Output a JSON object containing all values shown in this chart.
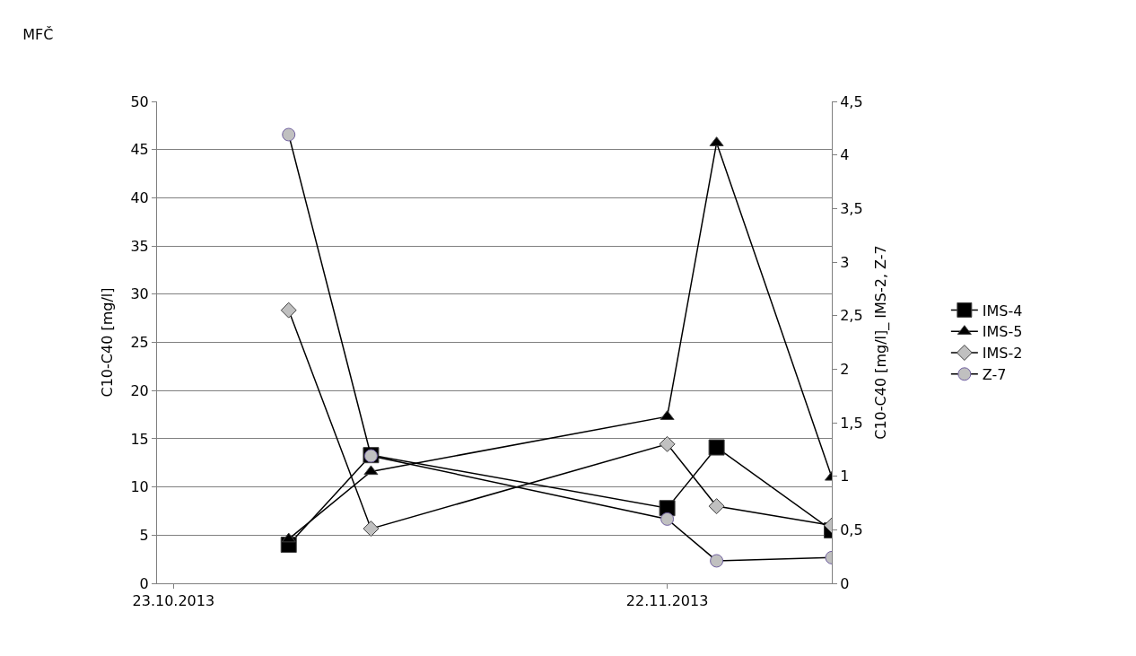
{
  "chart_data": {
    "type": "line",
    "title": "MFČ",
    "ylabel": "C10-C40 [mg/l]",
    "y2label": "C10-C40 [mg/l]_ IMS-2, Z-7",
    "x": [
      "2013-10-30",
      "2013-11-04",
      "2013-11-22",
      "2013-11-25",
      "2013-12-02"
    ],
    "xlim": [
      "2013-10-22",
      "2013-12-02"
    ],
    "xticks": [
      {
        "value": "2013-10-23",
        "label": "23.10.2013"
      },
      {
        "value": "2013-11-22",
        "label": "22.11.2013"
      }
    ],
    "ylim": [
      0,
      50
    ],
    "yticks": [
      0,
      5,
      10,
      15,
      20,
      25,
      30,
      35,
      40,
      45,
      50
    ],
    "y2lim": [
      0,
      4.5
    ],
    "y2ticks": [
      0,
      {
        "value": 0.5,
        "label": "0,5"
      },
      1,
      {
        "value": 1.5,
        "label": "1,5"
      },
      2,
      {
        "value": 2.5,
        "label": "2,5"
      },
      3,
      {
        "value": 3.5,
        "label": "3,5"
      },
      4,
      {
        "value": 4.5,
        "label": "4,5"
      }
    ],
    "grid": "y",
    "legend": "right",
    "series": [
      {
        "name": "IMS-4",
        "color": "#000000",
        "marker": "square",
        "values": [
          4.0,
          13.3,
          7.8,
          14.1,
          5.5
        ]
      },
      {
        "name": "IMS-5",
        "color": "#000000",
        "marker": "triangle",
        "values": [
          4.6,
          11.6,
          17.3,
          45.7,
          11.0
        ]
      },
      {
        "name": "IMS-2",
        "color": "#000000",
        "marker": "diamond",
        "axis": "y2",
        "colors": [
          "#c0c0c0",
          "#c0c0c0",
          "#c0c0c0",
          "#c0c0c0",
          "#c0c0c0"
        ],
        "values": [
          2.55,
          0.51,
          1.3,
          0.72,
          0.54
        ]
      },
      {
        "name": "Z-7",
        "color": "#000000",
        "marker": "circle",
        "axis": "y2",
        "colors": [
          "#c0c0c0",
          "#c0c0c0",
          "#c0c0c0",
          "#c0c0c0",
          "#c0c0c0"
        ],
        "values": [
          4.19,
          1.19,
          0.6,
          0.21,
          0.24
        ]
      }
    ]
  }
}
